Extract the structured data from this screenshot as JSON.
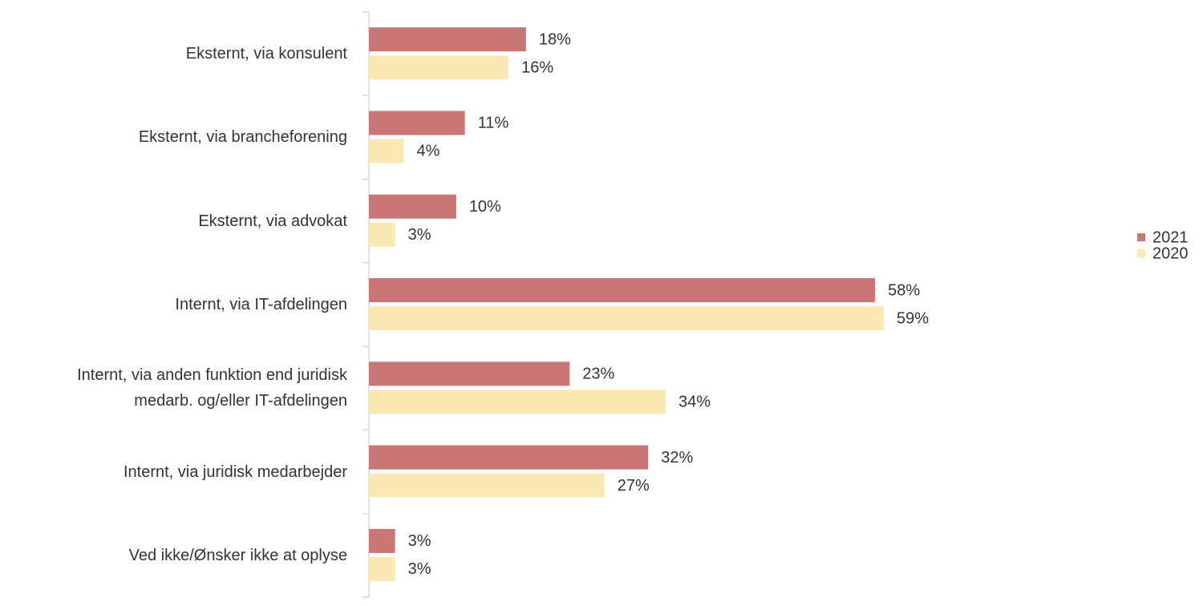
{
  "chart_data": {
    "type": "hbar",
    "categories": [
      "Eksternt, via konsulent",
      "Eksternt, via brancheforening",
      "Eksternt, via advokat",
      "Internt, via IT-afdelingen",
      "Internt, via anden funktion end juridisk\nmedarb. og/eller IT-afdelingen",
      "Internt, via juridisk medarbejder",
      "Ved ikke/Ønsker ikke at oplyse"
    ],
    "series": [
      {
        "name": "2021",
        "color": "#c97677",
        "values": [
          18,
          11,
          10,
          58,
          23,
          32,
          3
        ],
        "value_labels": [
          "18%",
          "11%",
          "10%",
          "58%",
          "23%",
          "32%",
          "3%"
        ]
      },
      {
        "name": "2020",
        "color": "#fbe9b5",
        "values": [
          16,
          4,
          3,
          59,
          34,
          27,
          3
        ],
        "value_labels": [
          "16%",
          "4%",
          "3%",
          "59%",
          "34%",
          "27%",
          "3%"
        ]
      }
    ],
    "legend": "right"
  }
}
